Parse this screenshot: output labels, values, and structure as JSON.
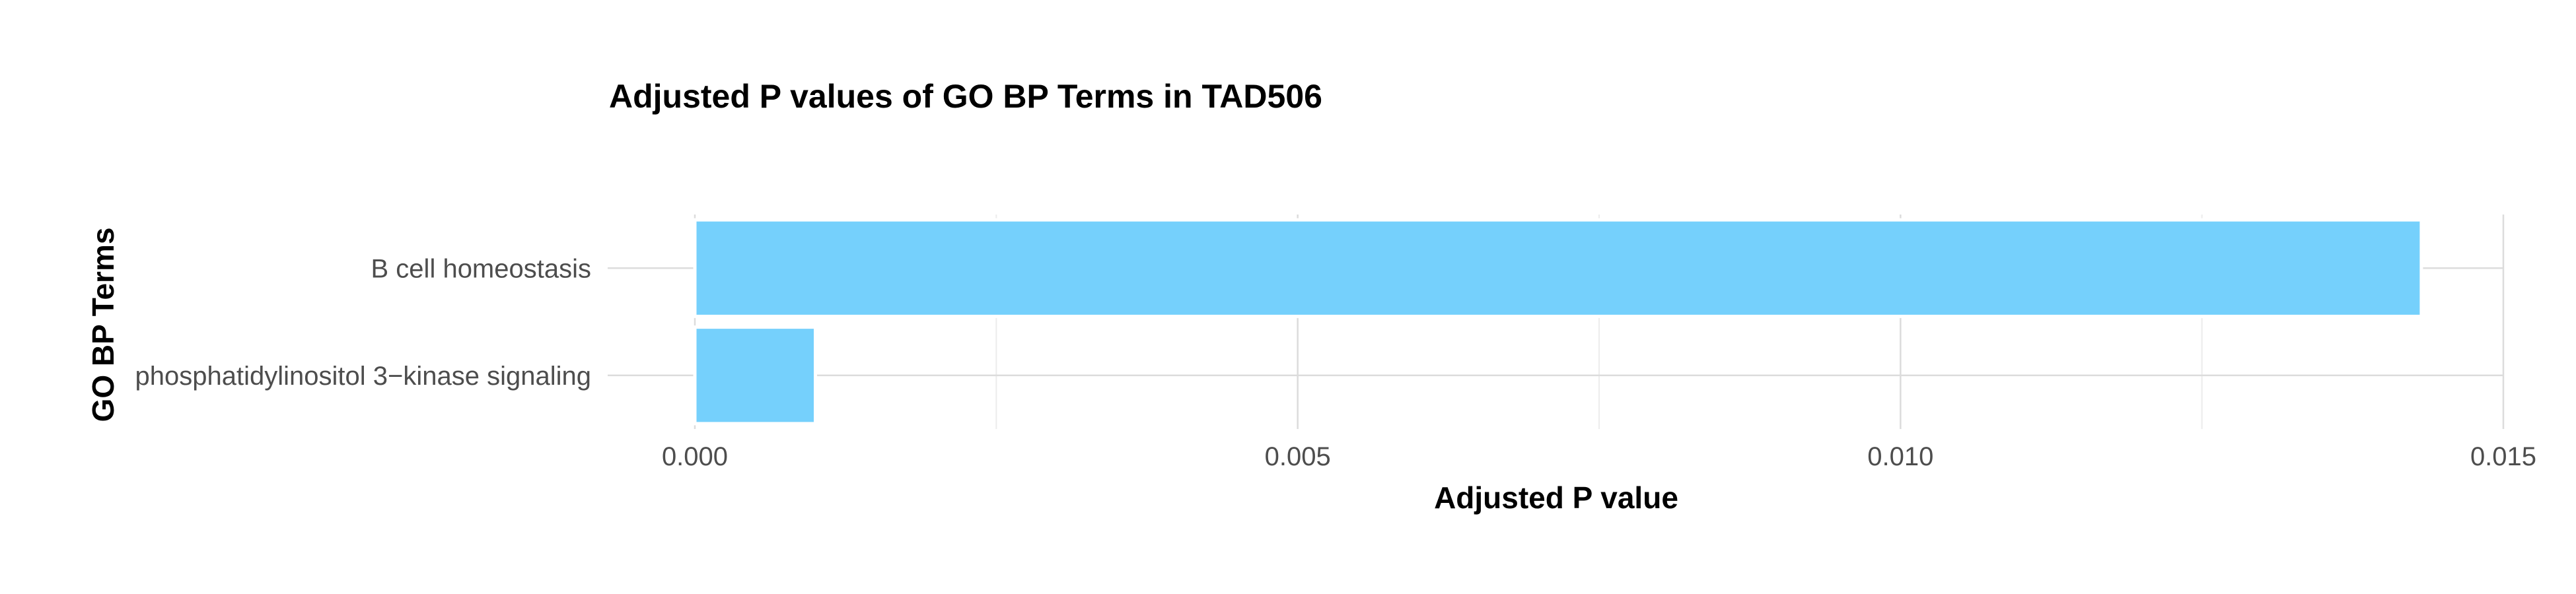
{
  "chart_data": {
    "type": "bar",
    "orientation": "horizontal",
    "title": "Adjusted P values of GO BP Terms in TAD506",
    "xlabel": "Adjusted P value",
    "ylabel": "GO BP Terms",
    "categories": [
      "B cell homeostasis",
      "phosphatidylinositol 3−kinase signaling"
    ],
    "values": [
      0.01432,
      0.001
    ],
    "xlim": [
      0,
      0.015
    ],
    "xticks": [
      0.0,
      0.005,
      0.01,
      0.015
    ],
    "xtick_labels": [
      "0.000",
      "0.005",
      "0.010",
      "0.015"
    ],
    "grid": true,
    "legend": "none",
    "bar_color": "#75d0fc"
  }
}
